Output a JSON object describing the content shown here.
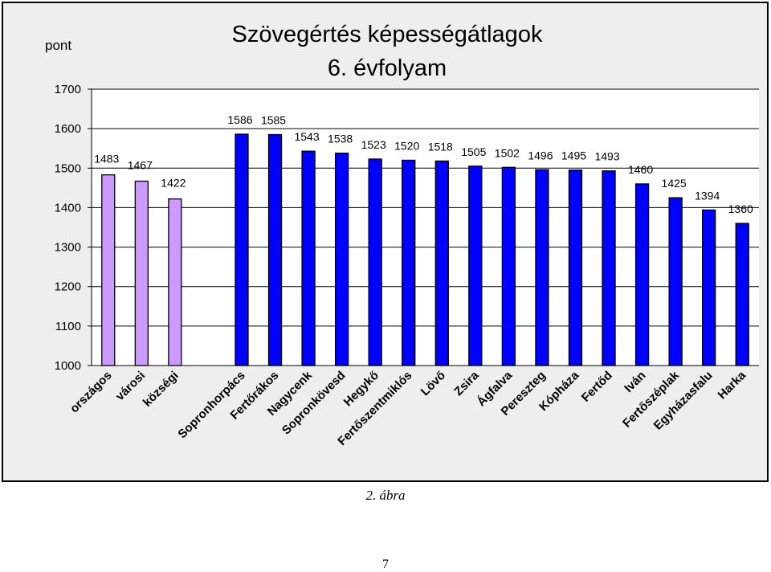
{
  "chart_data": {
    "type": "bar",
    "title_line1": "Szövegértés képességátlagok",
    "title_line2": "6. évfolyam",
    "ylabel": "pont",
    "ylim": [
      1000,
      1700
    ],
    "yticks": [
      "1000",
      "1100",
      "1200",
      "1300",
      "1400",
      "1500",
      "1600",
      "1700"
    ],
    "grid": true,
    "legend": "none",
    "categories": [
      "országos",
      "városi",
      "községi",
      "",
      "Sopronhorpács",
      "Fertőrákos",
      "Nagycenk",
      "Sopronkövesd",
      "Hegykő",
      "Fertőszentmiklós",
      "Lövő",
      "Zsira",
      "Ágfalva",
      "Pereszteg",
      "Kópháza",
      "Fertőd",
      "Iván",
      "Fertőszéplak",
      "Egyházasfalu",
      "Harka"
    ],
    "values": [
      1483,
      1467,
      1422,
      null,
      1586,
      1585,
      1543,
      1538,
      1523,
      1520,
      1518,
      1505,
      1502,
      1496,
      1495,
      1493,
      1460,
      1425,
      1394,
      1360
    ],
    "bar_colors": {
      "reference": "#cc99ff",
      "school": "#0000ff"
    },
    "reference_count": 3
  },
  "captions": {
    "figure": "2. ábra",
    "page": "7"
  }
}
